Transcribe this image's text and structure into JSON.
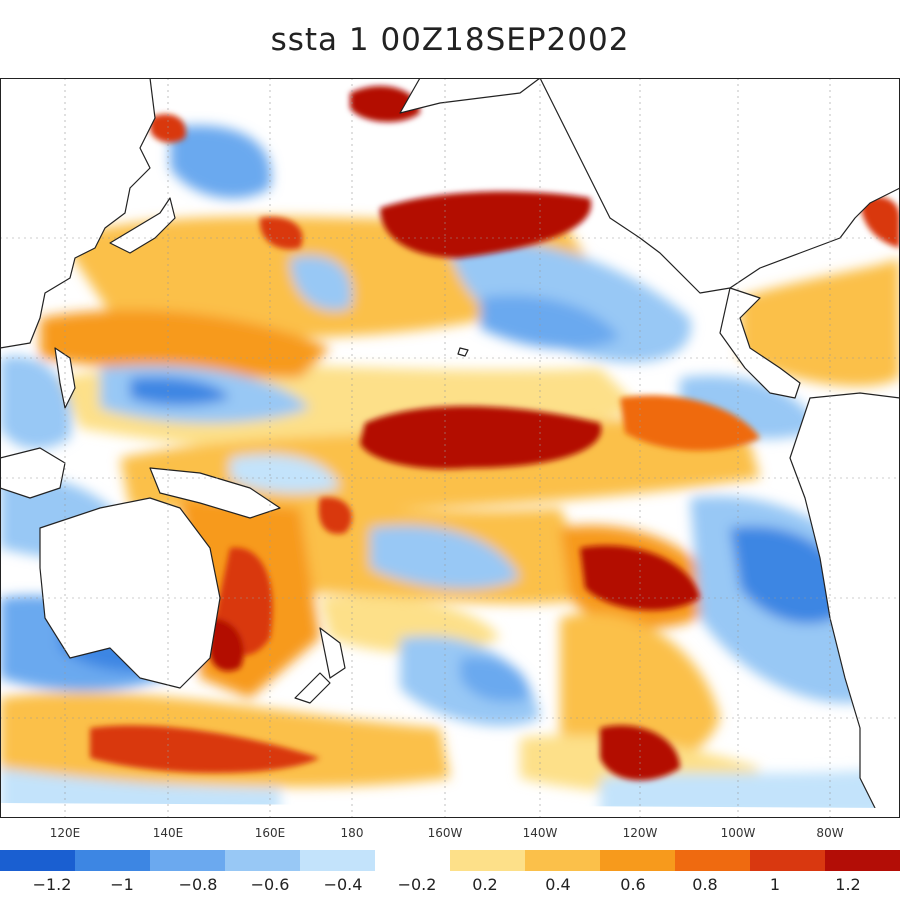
{
  "title": "ssta 1 00Z18SEP2002",
  "lon_labels": [
    "120E",
    "140E",
    "160E",
    "180",
    "160W",
    "140W",
    "120W",
    "100W",
    "80W"
  ],
  "colorbar": {
    "colors": [
      "#1a5fd1",
      "#3d86e3",
      "#6ba9ef",
      "#98c8f5",
      "#c3e3fb",
      "#ffffff",
      "#fde089",
      "#fbc04a",
      "#f79a1c",
      "#ef6a10",
      "#d93810",
      "#b30d06"
    ],
    "labels": [
      "−1.2",
      "−1",
      "−0.8",
      "−0.6",
      "−0.4",
      "−0.2",
      "0.2",
      "0.4",
      "0.6",
      "0.8",
      "1",
      "1.2"
    ]
  }
}
